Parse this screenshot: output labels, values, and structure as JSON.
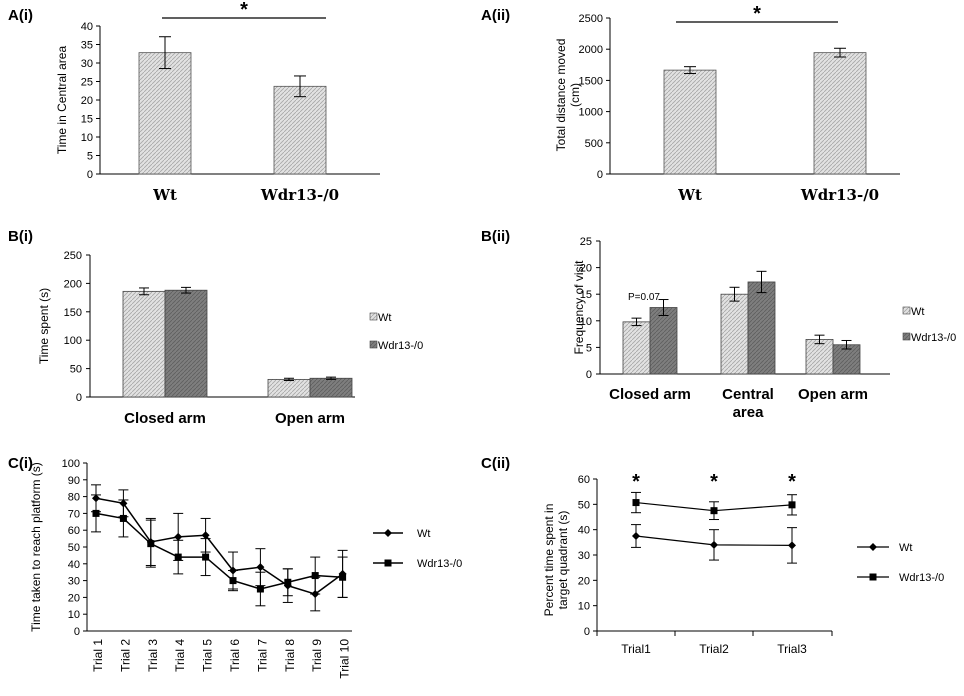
{
  "colors": {
    "wt_fill": "#d8d8d8",
    "ko_fill": "#7a7a7a",
    "axis": "#000000"
  },
  "panels": {
    "a1": {
      "label": "A(i)"
    },
    "a2": {
      "label": "A(ii)"
    },
    "b1": {
      "label": "B(i)"
    },
    "b2": {
      "label": "B(ii)"
    },
    "c1": {
      "label": "C(i)"
    },
    "c2": {
      "label": "C(ii)"
    }
  },
  "chart_data": [
    {
      "id": "a1",
      "type": "bar",
      "ylabel": "Time in Central area",
      "categories": [
        "Wt",
        "Wdr13-/0"
      ],
      "values": [
        32.8,
        23.7
      ],
      "errors": [
        4.3,
        2.8
      ],
      "ylim": [
        0,
        40
      ],
      "yticks": [
        0,
        5,
        10,
        15,
        20,
        25,
        30,
        35,
        40
      ],
      "significance": "*"
    },
    {
      "id": "a2",
      "type": "bar",
      "ylabel": "Total distance moved (cm)",
      "ylabel_lines": [
        "Total distance moved",
        "(cm)"
      ],
      "categories": [
        "Wt",
        "Wdr13-/0"
      ],
      "values": [
        1665,
        1945
      ],
      "errors": [
        55,
        70
      ],
      "ylim": [
        0,
        2500
      ],
      "yticks": [
        0,
        500,
        1000,
        1500,
        2000,
        2500
      ],
      "significance": "*"
    },
    {
      "id": "b1",
      "type": "bar",
      "ylabel": "Time spent (s)",
      "categories": [
        "Closed arm",
        "Open arm"
      ],
      "series": [
        {
          "name": "Wt",
          "values": [
            186,
            31
          ],
          "errors": [
            6,
            2
          ]
        },
        {
          "name": "Wdr13-/0",
          "values": [
            188,
            33
          ],
          "errors": [
            5,
            2
          ]
        }
      ],
      "ylim": [
        0,
        250
      ],
      "yticks": [
        0,
        50,
        100,
        150,
        200,
        250
      ],
      "legend": "right"
    },
    {
      "id": "b2",
      "type": "bar",
      "ylabel": "Frequency of visit",
      "categories": [
        "Closed arm",
        "Central area",
        "Open arm"
      ],
      "category_lines": [
        [
          "Closed arm"
        ],
        [
          "Central",
          "area"
        ],
        [
          "Open arm"
        ]
      ],
      "series": [
        {
          "name": "Wt",
          "values": [
            9.8,
            15.0,
            6.5
          ],
          "errors": [
            0.7,
            1.3,
            0.8
          ]
        },
        {
          "name": "Wdr13-/0",
          "values": [
            12.5,
            17.3,
            5.5
          ],
          "errors": [
            1.5,
            2.0,
            0.8
          ]
        }
      ],
      "ylim": [
        0,
        25
      ],
      "yticks": [
        0,
        5,
        10,
        15,
        20,
        25
      ],
      "annotation": "P=0.07",
      "legend": "right"
    },
    {
      "id": "c1",
      "type": "line",
      "ylabel": "Time taken to reach platform (s)",
      "categories": [
        "Trial 1",
        "Trial 2",
        "Trial 3",
        "Trial 4",
        "Trial 5",
        "Trial 6",
        "Trial 7",
        "Trial 8",
        "Trial 9",
        "Trial 10"
      ],
      "series": [
        {
          "name": "Wt",
          "marker": "diamond",
          "values": [
            79,
            76,
            53,
            56,
            57,
            36,
            38,
            27,
            22,
            34
          ],
          "errors": [
            8,
            8,
            14,
            14,
            10,
            11,
            11,
            10,
            10,
            14
          ]
        },
        {
          "name": "Wdr13-/0",
          "marker": "square",
          "values": [
            70,
            67,
            52,
            44,
            44,
            30,
            25,
            29,
            33,
            32
          ],
          "errors": [
            11,
            11,
            14,
            10,
            11,
            6,
            10,
            8,
            11,
            12
          ]
        }
      ],
      "ylim": [
        0,
        100
      ],
      "yticks": [
        0,
        10,
        20,
        30,
        40,
        50,
        60,
        70,
        80,
        90,
        100
      ],
      "legend": "right"
    },
    {
      "id": "c2",
      "type": "line",
      "ylabel": "Percent time spent in target quadrant (s)",
      "ylabel_lines": [
        "Percent time spent in",
        "target quadrant (s)"
      ],
      "categories": [
        "Trial1",
        "Trial2",
        "Trial3"
      ],
      "series": [
        {
          "name": "Wt",
          "marker": "diamond",
          "values": [
            37.5,
            34,
            33.8
          ],
          "errors": [
            4.5,
            6,
            7
          ]
        },
        {
          "name": "Wdr13-/0",
          "marker": "square",
          "values": [
            50.7,
            47.5,
            49.8
          ],
          "errors": [
            4,
            3.5,
            4
          ]
        }
      ],
      "ylim": [
        0,
        60
      ],
      "yticks": [
        0,
        10,
        20,
        30,
        40,
        50,
        60
      ],
      "significance": [
        "*",
        "*",
        "*"
      ],
      "legend": "right"
    }
  ]
}
